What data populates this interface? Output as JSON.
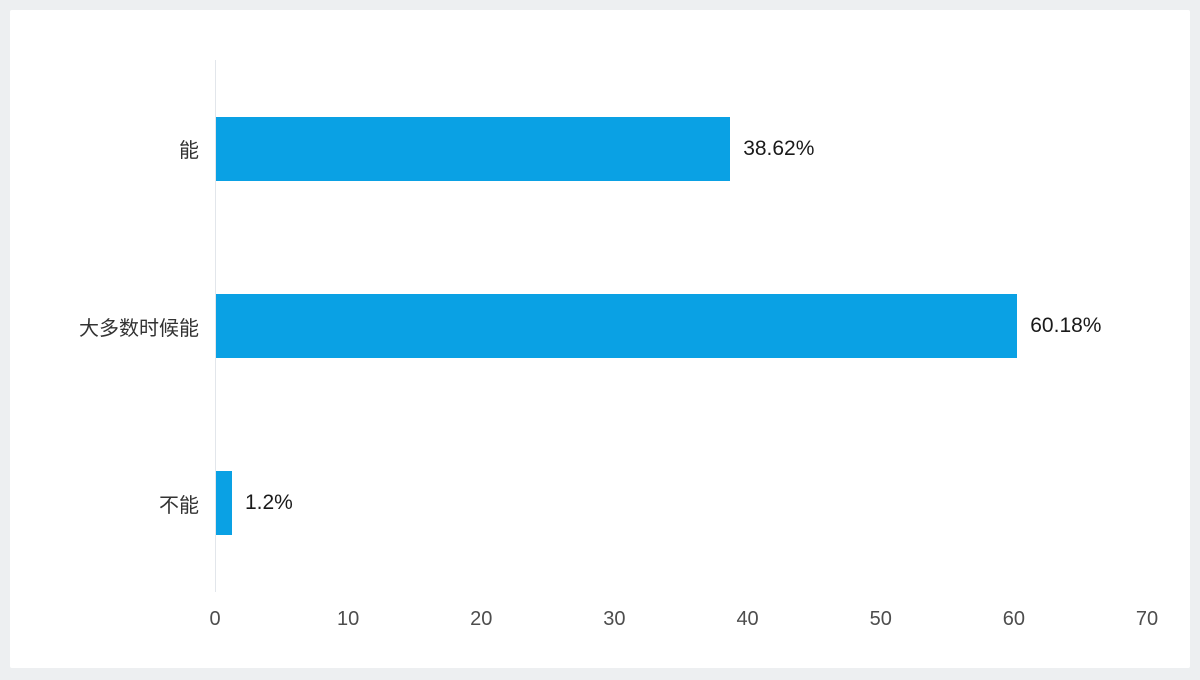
{
  "chart_data": {
    "type": "bar",
    "orientation": "horizontal",
    "title": "",
    "categories": [
      "能",
      "大多数时候能",
      "不能"
    ],
    "values": [
      38.62,
      60.18,
      1.2
    ],
    "value_labels": [
      "38.62%",
      "60.18%",
      "1.2%"
    ],
    "x_ticks": [
      "0",
      "10",
      "20",
      "30",
      "40",
      "50",
      "60",
      "70"
    ],
    "x_tick_values": [
      0,
      10,
      20,
      30,
      40,
      50,
      60,
      70
    ],
    "xlim": [
      0,
      70
    ],
    "xlabel": "",
    "ylabel": "",
    "grid": false,
    "legend": false,
    "bar_color": "#0aa1e4"
  },
  "colors": {
    "background": "#edeff1",
    "card": "#ffffff",
    "axis_line": "#e2e6eb",
    "tick_text": "#4d4d4d",
    "category_text": "#333333",
    "value_text": "#1a1a1a"
  }
}
